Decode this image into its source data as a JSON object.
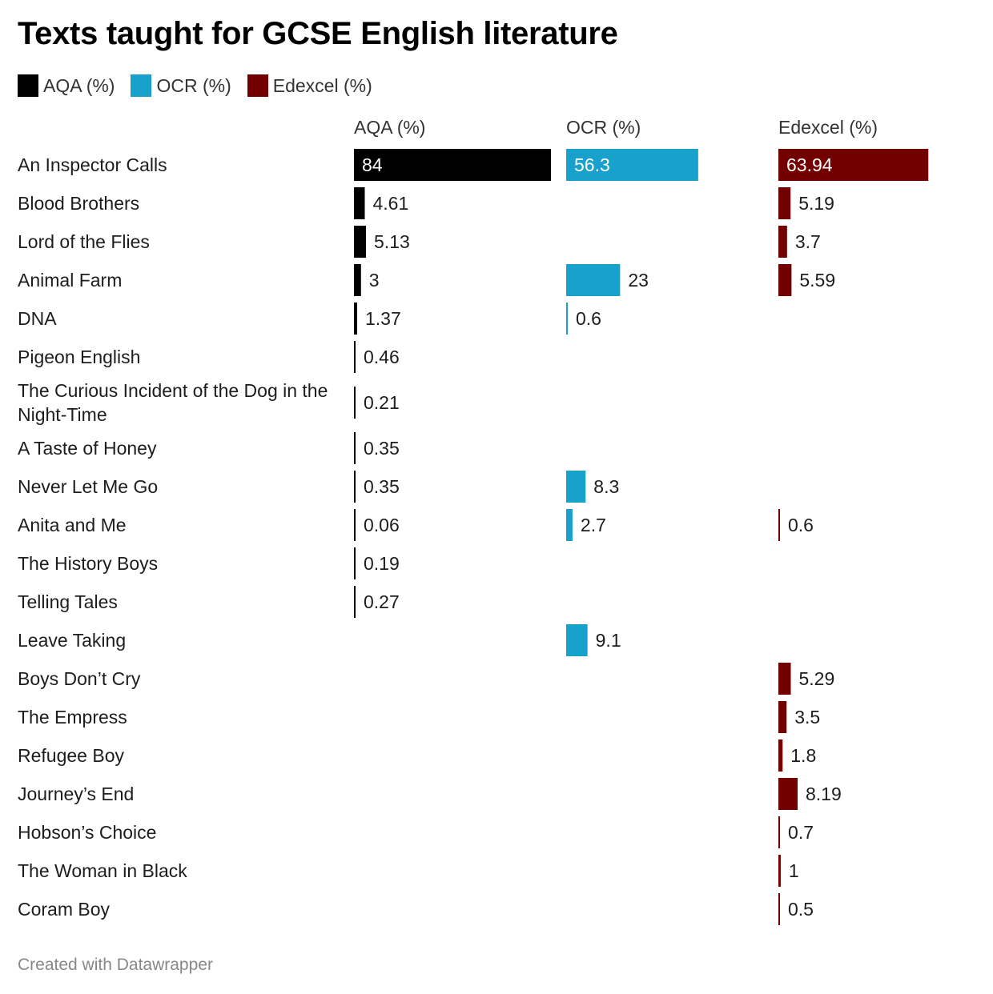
{
  "chart_data": {
    "type": "bar",
    "title": "Texts taught for GCSE English literature",
    "series": [
      {
        "name": "AQA (%)",
        "color": "#000000",
        "values": [
          84,
          4.61,
          5.13,
          3,
          1.37,
          0.46,
          0.21,
          0.35,
          0.35,
          0.06,
          0.19,
          0.27,
          null,
          null,
          null,
          null,
          null,
          null,
          null,
          null
        ]
      },
      {
        "name": "OCR (%)",
        "color": "#18a1cd",
        "values": [
          56.3,
          null,
          null,
          23,
          0.6,
          null,
          null,
          null,
          8.3,
          2.7,
          null,
          null,
          9.1,
          null,
          null,
          null,
          null,
          null,
          null,
          null
        ]
      },
      {
        "name": "Edexcel (%)",
        "color": "#730000",
        "values": [
          63.94,
          5.19,
          3.7,
          5.59,
          null,
          null,
          null,
          null,
          null,
          0.6,
          null,
          null,
          null,
          5.29,
          3.5,
          1.8,
          8.19,
          0.7,
          1,
          0.5
        ]
      }
    ],
    "categories": [
      "An Inspector Calls",
      "Blood Brothers",
      "Lord of the Flies",
      "Animal Farm",
      "DNA",
      "Pigeon English",
      "The Curious Incident of the Dog in the Night-Time",
      "A Taste of Honey",
      "Never Let Me Go",
      "Anita and Me",
      "The History Boys",
      "Telling Tales",
      "Leave Taking",
      "Boys Don’t Cry",
      "The Empress",
      "Refugee Boy",
      "Journey’s End",
      "Hobson’s Choice",
      "The Woman in Black",
      "Coram Boy"
    ],
    "category_lines": [
      [
        "An Inspector Calls"
      ],
      [
        "Blood Brothers"
      ],
      [
        "Lord of the Flies"
      ],
      [
        "Animal Farm"
      ],
      [
        "DNA"
      ],
      [
        "Pigeon English"
      ],
      [
        "The Curious Incident of the Dog in the",
        "Night-Time"
      ],
      [
        "A Taste of Honey"
      ],
      [
        "Never Let Me Go"
      ],
      [
        "Anita and Me"
      ],
      [
        "The History Boys"
      ],
      [
        "Telling Tales"
      ],
      [
        "Leave Taking"
      ],
      [
        "Boys Don’t Cry"
      ],
      [
        "The Empress"
      ],
      [
        "Refugee Boy"
      ],
      [
        "Journey’s End"
      ],
      [
        "Hobson’s Choice"
      ],
      [
        "The Woman in Black"
      ],
      [
        "Coram Boy"
      ]
    ],
    "value_labels": [
      [
        "84",
        "4.61",
        "5.13",
        "3",
        "1.37",
        "0.46",
        "0.21",
        "0.35",
        "0.35",
        "0.06",
        "0.19",
        "0.27",
        "",
        "",
        "",
        "",
        "",
        "",
        "",
        ""
      ],
      [
        "56.3",
        "",
        "",
        "23",
        "0.6",
        "",
        "",
        "",
        "8.3",
        "2.7",
        "",
        "",
        "9.1",
        "",
        "",
        "",
        "",
        "",
        "",
        ""
      ],
      [
        "63.94",
        "5.19",
        "3.7",
        "5.59",
        "",
        "",
        "",
        "",
        "",
        "0.6",
        "",
        "",
        "",
        "5.29",
        "3.5",
        "1.8",
        "8.19",
        "0.7",
        "1",
        "0.5"
      ]
    ],
    "xlim": [
      0,
      84
    ],
    "legend": "top-left",
    "grid": false
  },
  "footer": "Created with Datawrapper"
}
